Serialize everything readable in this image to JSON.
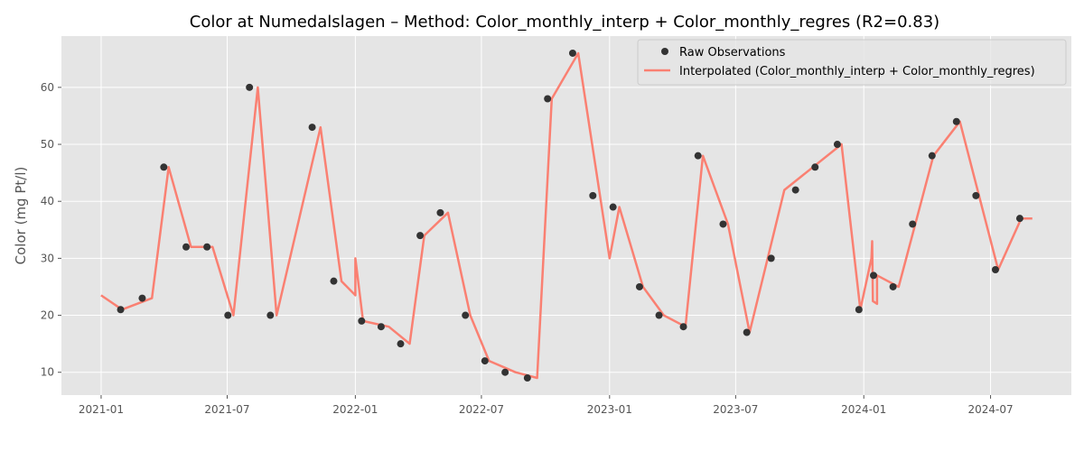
{
  "chart_data": {
    "type": "line",
    "title": "Color at Numedalslagen – Method: Color_monthly_interp + Color_monthly_regres (R2=0.83)",
    "xlabel": "",
    "ylabel": "Color (mg Pt/l)",
    "xlim": [
      "2020-11-05",
      "2024-10-25"
    ],
    "ylim": [
      6.0,
      69.0
    ],
    "x_ticks": [
      "2021-01",
      "2021-07",
      "2022-01",
      "2022-07",
      "2023-01",
      "2023-07",
      "2024-01",
      "2024-07"
    ],
    "y_ticks": [
      10,
      20,
      30,
      40,
      50,
      60
    ],
    "grid": true,
    "legend_placement": "top-right",
    "colors": {
      "background": "#e5e5e5",
      "grid": "#ffffff",
      "observations": "#333333",
      "interpolated": "#fa8072"
    },
    "series": [
      {
        "name": "Raw Observations",
        "kind": "scatter",
        "points": [
          [
            "2021-01-29",
            21
          ],
          [
            "2021-03-01",
            23
          ],
          [
            "2021-04-01",
            46
          ],
          [
            "2021-05-03",
            32
          ],
          [
            "2021-06-02",
            32
          ],
          [
            "2021-07-02",
            20
          ],
          [
            "2021-08-02",
            60
          ],
          [
            "2021-09-01",
            20
          ],
          [
            "2021-10-31",
            53
          ],
          [
            "2021-12-01",
            26
          ],
          [
            "2022-01-10",
            19
          ],
          [
            "2022-02-07",
            18
          ],
          [
            "2022-03-07",
            15
          ],
          [
            "2022-04-04",
            34
          ],
          [
            "2022-05-03",
            38
          ],
          [
            "2022-06-08",
            20
          ],
          [
            "2022-07-06",
            12
          ],
          [
            "2022-08-04",
            10
          ],
          [
            "2022-09-05",
            9
          ],
          [
            "2022-10-04",
            58
          ],
          [
            "2022-11-09",
            66
          ],
          [
            "2022-12-08",
            41
          ],
          [
            "2023-01-06",
            39
          ],
          [
            "2023-02-13",
            25
          ],
          [
            "2023-03-13",
            20
          ],
          [
            "2023-04-17",
            18
          ],
          [
            "2023-05-08",
            48
          ],
          [
            "2023-06-13",
            36
          ],
          [
            "2023-07-17",
            17
          ],
          [
            "2023-08-21",
            30
          ],
          [
            "2023-09-25",
            42
          ],
          [
            "2023-10-23",
            46
          ],
          [
            "2023-11-24",
            50
          ],
          [
            "2023-12-25",
            21
          ],
          [
            "2024-01-15",
            27
          ],
          [
            "2024-02-12",
            25
          ],
          [
            "2024-03-11",
            36
          ],
          [
            "2024-04-08",
            48
          ],
          [
            "2024-05-13",
            54
          ],
          [
            "2024-06-10",
            41
          ],
          [
            "2024-07-08",
            28
          ],
          [
            "2024-08-12",
            37
          ]
        ]
      },
      {
        "name": "Interpolated (Color_monthly_interp + Color_monthly_regres)",
        "kind": "line",
        "points": [
          [
            "2021-01-01",
            23.5
          ],
          [
            "2021-01-31",
            21
          ],
          [
            "2021-03-15",
            23
          ],
          [
            "2021-04-08",
            46
          ],
          [
            "2021-05-10",
            32
          ],
          [
            "2021-06-10",
            32
          ],
          [
            "2021-07-10",
            20
          ],
          [
            "2021-08-14",
            60
          ],
          [
            "2021-09-10",
            20
          ],
          [
            "2021-11-12",
            53
          ],
          [
            "2021-12-12",
            26
          ],
          [
            "2022-01-01",
            23.5
          ],
          [
            "2022-01-01",
            30
          ],
          [
            "2022-01-12",
            19
          ],
          [
            "2022-02-18",
            18
          ],
          [
            "2022-03-20",
            15
          ],
          [
            "2022-04-10",
            34
          ],
          [
            "2022-05-14",
            38
          ],
          [
            "2022-06-15",
            20
          ],
          [
            "2022-07-12",
            12
          ],
          [
            "2022-08-19",
            10
          ],
          [
            "2022-09-19",
            9
          ],
          [
            "2022-10-10",
            58
          ],
          [
            "2022-11-17",
            66
          ],
          [
            "2023-01-01",
            30
          ],
          [
            "2023-01-15",
            39
          ],
          [
            "2023-02-18",
            25
          ],
          [
            "2023-03-20",
            20
          ],
          [
            "2023-04-20",
            18
          ],
          [
            "2023-05-15",
            48
          ],
          [
            "2023-06-20",
            36
          ],
          [
            "2023-07-21",
            17
          ],
          [
            "2023-09-09",
            42
          ],
          [
            "2023-11-30",
            50
          ],
          [
            "2023-12-27",
            21
          ],
          [
            "2024-01-12",
            30
          ],
          [
            "2024-01-13",
            33
          ],
          [
            "2024-01-14",
            22.5
          ],
          [
            "2024-01-20",
            22
          ],
          [
            "2024-01-20",
            27
          ],
          [
            "2024-02-20",
            25
          ],
          [
            "2024-04-10",
            48
          ],
          [
            "2024-05-18",
            54
          ],
          [
            "2024-07-12",
            28
          ],
          [
            "2024-08-14",
            37
          ],
          [
            "2024-08-30",
            37
          ]
        ]
      }
    ]
  }
}
